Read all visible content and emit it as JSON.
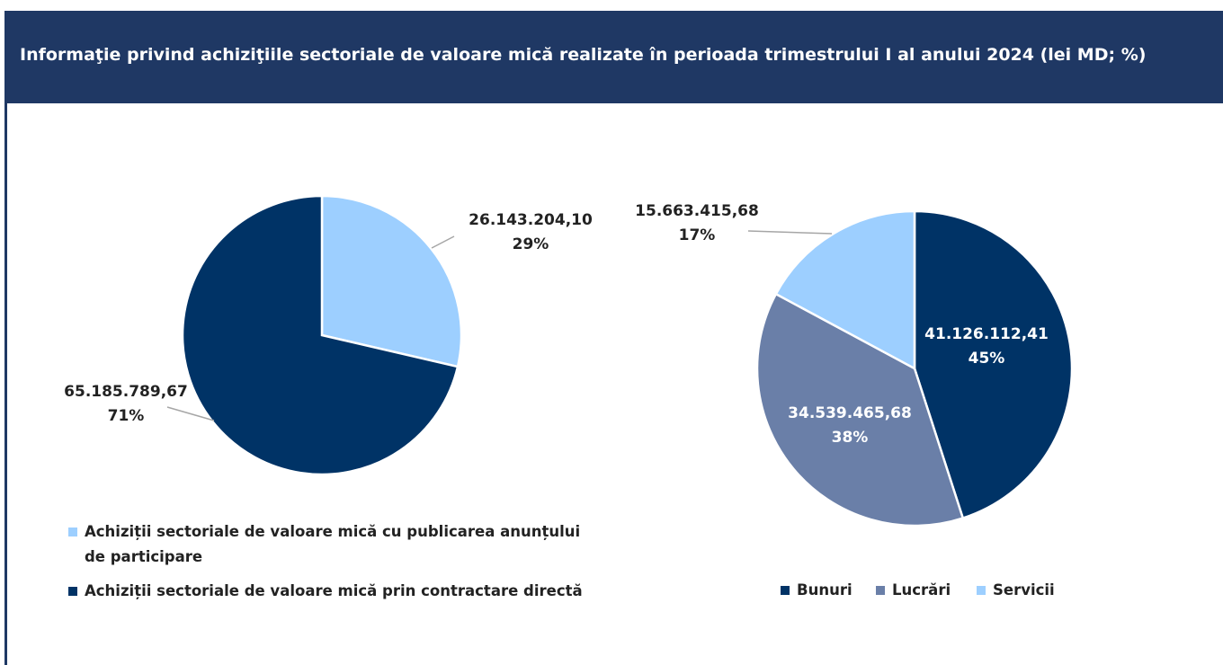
{
  "title": "Informaţie privind achiziţiile sectoriale de valoare mică realizate în perioada trimestrului I al anului 2024 (lei MD; %)",
  "chart_data": [
    {
      "type": "pie",
      "categories": [
        "Achiziții sectoriale de valoare mică cu publicarea anunțului de participare",
        "Achiziții sectoriale de valoare mică prin contractare directă"
      ],
      "values": [
        26143204.1,
        65185789.67
      ],
      "value_labels": [
        "26.143.204,10",
        "65.185.789,67"
      ],
      "percent_labels": [
        "29%",
        "71%"
      ],
      "colors": [
        "#9dcfff",
        "#003366"
      ]
    },
    {
      "type": "pie",
      "categories": [
        "Bunuri",
        "Lucrări",
        "Servicii"
      ],
      "values": [
        41126112.41,
        34539465.68,
        15663415.68
      ],
      "value_labels": [
        "41.126.112,41",
        "34.539.465,68",
        "15.663.415,68"
      ],
      "percent_labels": [
        "45%",
        "38%",
        "17%"
      ],
      "colors": [
        "#003366",
        "#6a7fa8",
        "#9dcfff"
      ]
    }
  ]
}
